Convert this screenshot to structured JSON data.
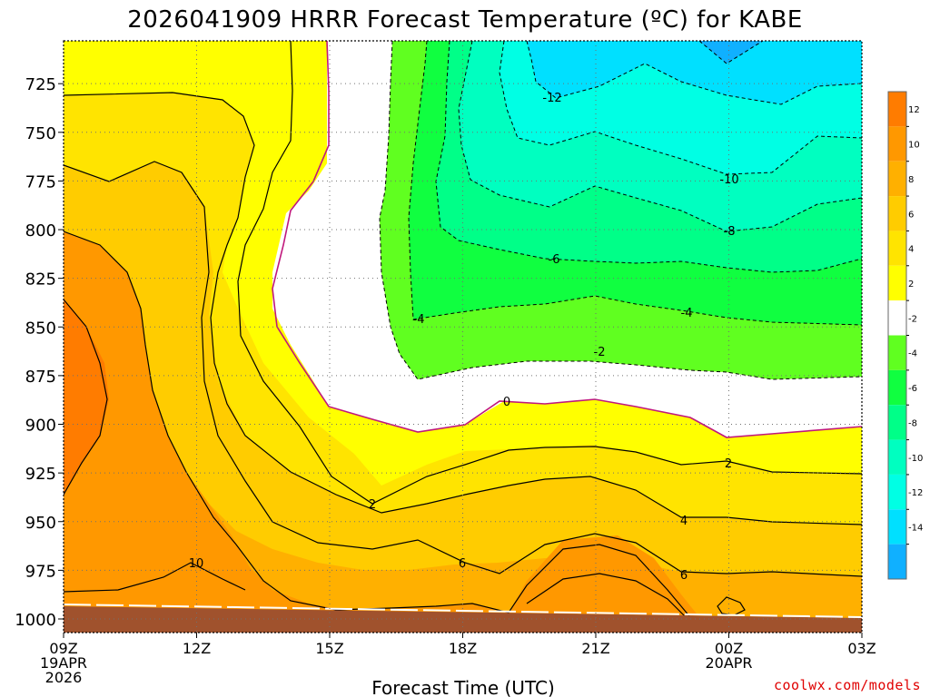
{
  "colors": {
    "c_m14": "#10b0ff",
    "c_m12": "#00e0ff",
    "c_m10": "#00ffe4",
    "c_m8": "#00ffc0",
    "c_m6": "#00ff88",
    "c_m4": "#10ff40",
    "c_m2": "#60ff20",
    "c_0": "#ffffff",
    "c_2": "#ffff00",
    "c_4": "#ffe400",
    "c_6": "#ffcc00",
    "c_8": "#ffb000",
    "c_10": "#ff9800",
    "c_12": "#ff7c00",
    "ground": "#a0522d",
    "zero_line": "#c0187c",
    "credit": "#e00000"
  },
  "chart_data": {
    "type": "heatmap",
    "title": "2026041909 HRRR Forecast Temperature (ºC) for KABE",
    "xlabel": "Forecast Time (UTC)",
    "ylabel": "",
    "x_ticks": [
      {
        "label": "09Z",
        "sub": [
          "19APR",
          "2026"
        ]
      },
      {
        "label": "12Z",
        "sub": []
      },
      {
        "label": "15Z",
        "sub": []
      },
      {
        "label": "18Z",
        "sub": []
      },
      {
        "label": "21Z",
        "sub": []
      },
      {
        "label": "00Z",
        "sub": [
          "20APR"
        ]
      },
      {
        "label": "03Z",
        "sub": []
      }
    ],
    "y_ticks": [
      "725",
      "750",
      "775",
      "800",
      "825",
      "850",
      "875",
      "900",
      "925",
      "950",
      "975",
      "1000"
    ],
    "y_range": [
      1007,
      703
    ],
    "x_range_hours": [
      0,
      18
    ],
    "colorbar_levels": [
      "12",
      "10",
      "8",
      "6",
      "4",
      "2",
      "-2",
      "-4",
      "-6",
      "-8",
      "-10",
      "-12",
      "-14"
    ],
    "contour_labels": [
      "-12",
      "-10",
      "-8",
      "-6",
      "-4",
      "-4",
      "-2",
      "0",
      "2",
      "2",
      "4",
      "6",
      "6",
      "10"
    ],
    "grid": true
  },
  "credit": "coolwx.com/models"
}
